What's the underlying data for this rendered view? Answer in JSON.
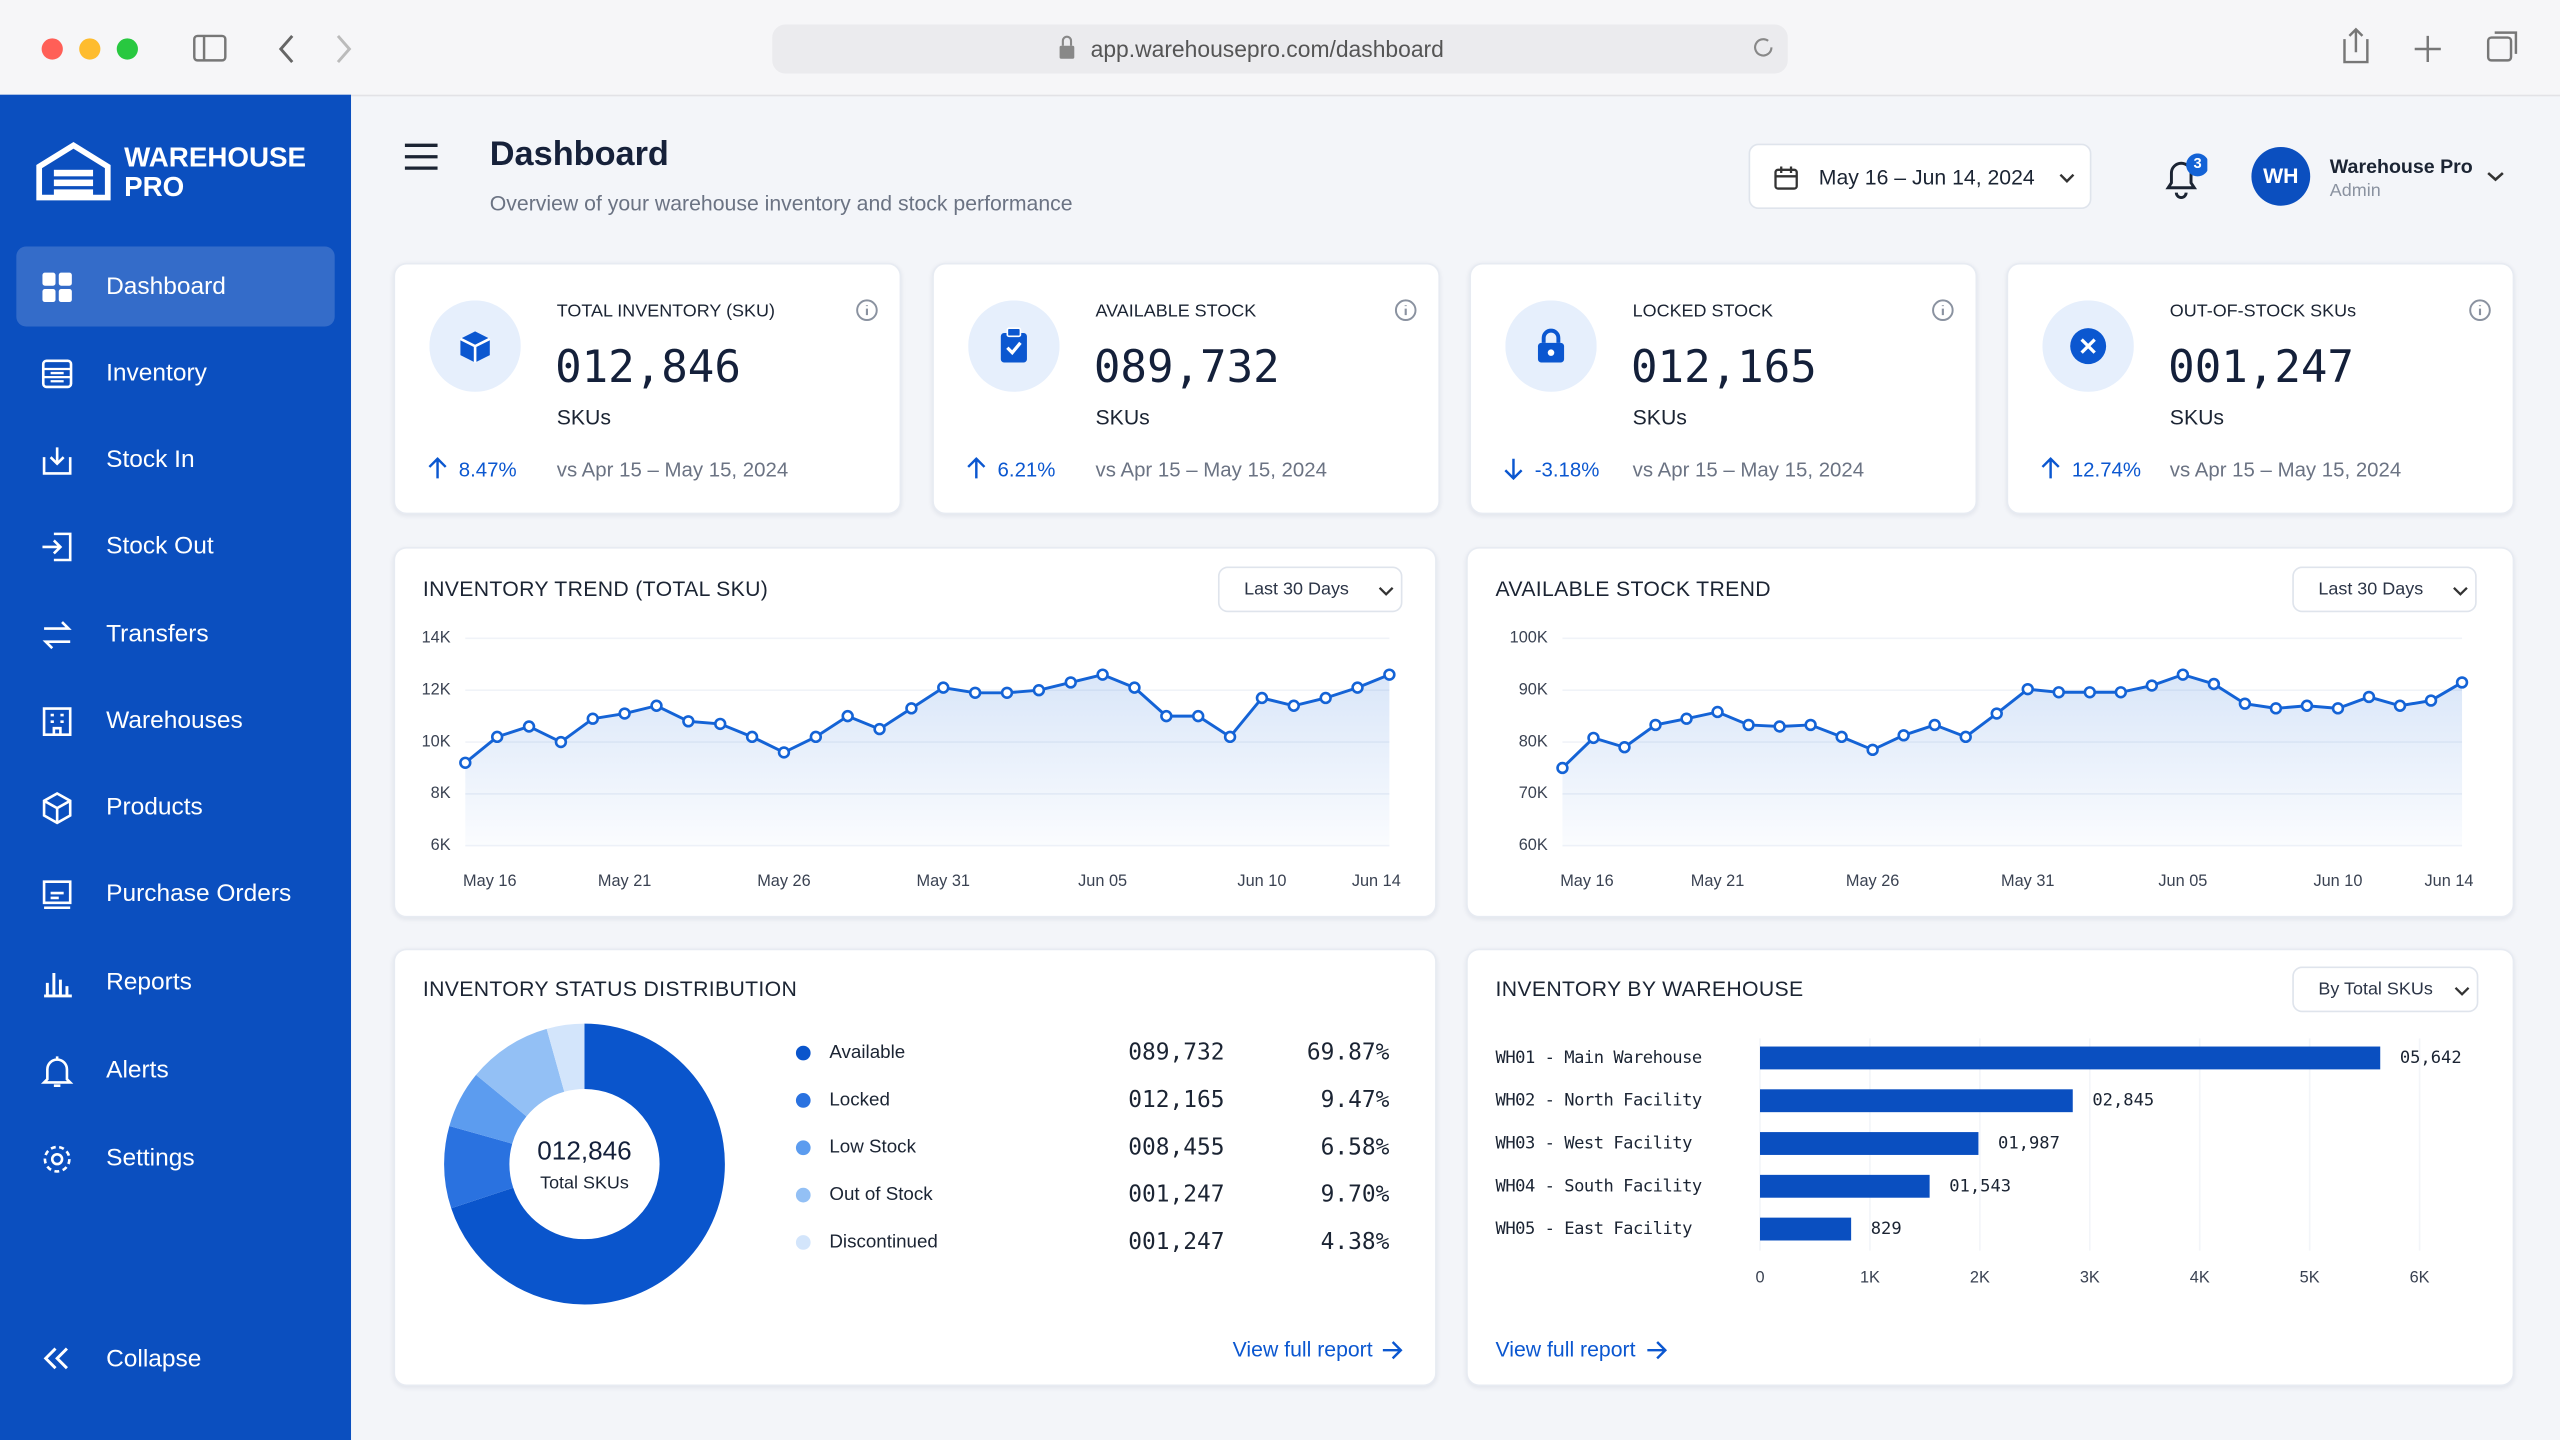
{
  "browser": {
    "url": "app.warehousepro.com/dashboard"
  },
  "sidebar": {
    "brand": [
      "WAREHOUSE",
      "PRO"
    ],
    "nav": [
      "Dashboard",
      "Inventory",
      "Stock In",
      "Stock Out",
      "Transfers",
      "Warehouses",
      "Products",
      "Purchase Orders",
      "Reports",
      "Alerts",
      "Settings"
    ],
    "active": 0,
    "collapse": "Collapse"
  },
  "header": {
    "title": "Dashboard",
    "subtitle": "Overview of your warehouse inventory and stock performance",
    "date_range": "May 16 – Jun 14, 2024",
    "notifications": 3,
    "user": {
      "initials": "WH",
      "name": "Warehouse Pro",
      "role": "Admin"
    }
  },
  "kpis": [
    {
      "label": "TOTAL INVENTORY (SKU)",
      "value": "012,846",
      "unit": "SKUs",
      "change": "8.47%",
      "compare": "vs Apr 15 – May 15, 2024"
    },
    {
      "label": "AVAILABLE STOCK",
      "value": "089,732",
      "unit": "SKUs",
      "change": "6.21%",
      "compare": "vs Apr 15 – May 15, 2024"
    },
    {
      "label": "LOCKED STOCK",
      "value": "012,165",
      "unit": "SKUs",
      "change": "-3.18%",
      "compare": "vs Apr 15 – May 15, 2024"
    },
    {
      "label": "OUT-OF-STOCK SKUs",
      "value": "001,247",
      "unit": "SKUs",
      "change": "12.74%",
      "compare": "vs Apr 15 – May 15, 2024"
    }
  ],
  "charts": [
    {
      "type": "line",
      "title": "INVENTORY TREND (TOTAL SKU)",
      "filter": "Last 30 Days",
      "color": "#1463d6",
      "categories": [
        "May 16",
        null,
        null,
        null,
        null,
        "May 21",
        null,
        null,
        null,
        null,
        "May 26",
        null,
        null,
        null,
        null,
        "May 31",
        null,
        null,
        null,
        null,
        "Jun 05",
        null,
        null,
        null,
        null,
        "Jun 10",
        null,
        null,
        null,
        "Jun 14"
      ],
      "values": [
        9200,
        10200,
        10600,
        10000,
        10900,
        11100,
        11400,
        10800,
        10700,
        10200,
        9600,
        10200,
        11000,
        10500,
        11300,
        12100,
        11900,
        11900,
        12000,
        12300,
        12600,
        12100,
        11000,
        11000,
        10200,
        11700,
        11400,
        11700,
        12100,
        12600
      ],
      "ylim": [
        6000,
        14000
      ],
      "yticks": [
        {
          "value": 6000,
          "label": "6K"
        },
        {
          "value": 8000,
          "label": "8K"
        },
        {
          "value": 10000,
          "label": "10K"
        },
        {
          "value": 12000,
          "label": "12K"
        },
        {
          "value": 14000,
          "label": "14K"
        }
      ]
    },
    {
      "type": "line",
      "title": "AVAILABLE STOCK TREND",
      "filter": "Last 30 Days",
      "color": "#1463d6",
      "categories": [
        "May 16",
        null,
        null,
        null,
        null,
        "May 21",
        null,
        null,
        null,
        null,
        "May 26",
        null,
        null,
        null,
        null,
        "May 31",
        null,
        null,
        null,
        null,
        "Jun 05",
        null,
        null,
        null,
        null,
        "Jun 10",
        null,
        null,
        null,
        "Jun 14"
      ],
      "values": [
        75000,
        80800,
        79000,
        83300,
        84500,
        85800,
        83300,
        83000,
        83300,
        81000,
        78500,
        81300,
        83300,
        81000,
        85500,
        90200,
        89600,
        89600,
        89600,
        90900,
        93000,
        91200,
        87400,
        86500,
        87000,
        86500,
        88700,
        87000,
        88000,
        91500
      ],
      "ylim": [
        60000,
        100000
      ],
      "yticks": [
        {
          "value": 60000,
          "label": "60K"
        },
        {
          "value": 70000,
          "label": "70K"
        },
        {
          "value": 80000,
          "label": "80K"
        },
        {
          "value": 90000,
          "label": "90K"
        },
        {
          "value": 100000,
          "label": "100K"
        }
      ]
    },
    {
      "type": "donut",
      "title": "INVENTORY STATUS DISTRIBUTION",
      "center_value": "012,846",
      "center_label": "Total SKUs",
      "link": "View full report",
      "series": [
        {
          "name": "Available",
          "color": "#0a55cc",
          "count": "089,732"
        },
        {
          "name": "Locked",
          "color": "#2a72e0",
          "count": "012,165"
        },
        {
          "name": "Low Stock",
          "color": "#5c9cef",
          "count": "008,455"
        },
        {
          "name": "Out of Stock",
          "color": "#93c0f5",
          "count": "001,247"
        },
        {
          "name": "Discontinued",
          "color": "#d3e5fb",
          "count": "001,247"
        }
      ],
      "values": [
        69.87,
        9.47,
        6.58,
        9.7,
        4.38
      ],
      "value_labels": [
        "69.87%",
        "9.47%",
        "6.58%",
        "9.70%",
        "4.38%"
      ]
    },
    {
      "type": "hbar",
      "title": "INVENTORY BY WAREHOUSE",
      "filter": "By Total SKUs",
      "link": "View full report",
      "color": "#0a4fc0",
      "categories": [
        "WH01 - Main Warehouse",
        "WH02 - North Facility",
        "WH03 - West Facility",
        "WH04 - South Facility",
        "WH05 - East Facility"
      ],
      "values": [
        5642,
        2845,
        1987,
        1543,
        829
      ],
      "value_labels": [
        "05,642",
        "02,845",
        "01,987",
        "01,543",
        "829"
      ],
      "xlim": [
        0,
        6000
      ],
      "xticks": [
        0,
        {
          "value": 1000,
          "label": "1K"
        },
        {
          "value": 2000,
          "label": "2K"
        },
        {
          "value": 3000,
          "label": "3K"
        },
        {
          "value": 4000,
          "label": "4K"
        },
        {
          "value": 5000,
          "label": "5K"
        },
        {
          "value": 6000,
          "label": "6K"
        }
      ]
    }
  ]
}
